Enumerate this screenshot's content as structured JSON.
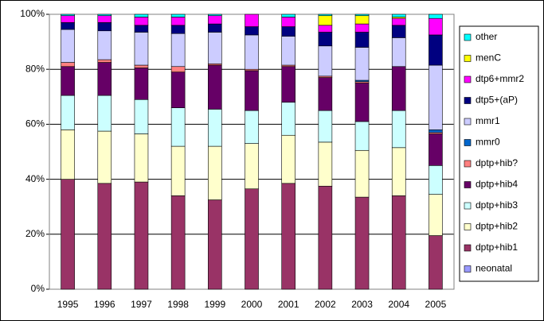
{
  "chart_data": {
    "type": "stacked-bar",
    "categories": [
      "1995",
      "1996",
      "1997",
      "1998",
      "1999",
      "2000",
      "2001",
      "2002",
      "2003",
      "2004",
      "2005"
    ],
    "ylim": [
      0,
      100
    ],
    "yticks": [
      {
        "value": 0,
        "label": "0%"
      },
      {
        "value": 20,
        "label": "20%"
      },
      {
        "value": 40,
        "label": "40%"
      },
      {
        "value": 60,
        "label": "60%"
      },
      {
        "value": 80,
        "label": "80%"
      },
      {
        "value": 100,
        "label": "100%"
      }
    ],
    "grid": true,
    "legend": "right",
    "series": [
      {
        "name": "neonatal",
        "color": "#9999ff",
        "values": [
          0,
          0,
          0,
          0,
          0,
          0,
          0,
          0,
          0,
          0,
          0
        ]
      },
      {
        "name": "dptp+hib1",
        "color": "#993366",
        "values": [
          40,
          38.5,
          39,
          34,
          32.5,
          36.5,
          38.5,
          37.5,
          33.5,
          34,
          19.5
        ]
      },
      {
        "name": "dptp+hib2",
        "color": "#ffffcc",
        "values": [
          18,
          19,
          17.5,
          18,
          19.5,
          16.5,
          17.5,
          16,
          17,
          17.5,
          15
        ]
      },
      {
        "name": "dptp+hib3",
        "color": "#ccffff",
        "values": [
          12.5,
          13,
          12.5,
          14,
          13.5,
          12,
          12,
          11.5,
          10.5,
          13.5,
          10.5
        ]
      },
      {
        "name": "dptp+hib4",
        "color": "#660066",
        "values": [
          10.5,
          12,
          11.5,
          13,
          16,
          14.5,
          13,
          12,
          14,
          16,
          11.5
        ]
      },
      {
        "name": "dptp+hib?",
        "color": "#ff8080",
        "values": [
          1.5,
          1,
          1,
          2,
          0.5,
          0.5,
          0.5,
          0.5,
          0.5,
          0,
          0.5
        ]
      },
      {
        "name": "mmr0",
        "color": "#0066cc",
        "values": [
          0,
          0,
          0,
          0,
          0,
          0,
          0,
          0,
          0.5,
          0,
          1
        ]
      },
      {
        "name": "mmr1",
        "color": "#ccccff",
        "values": [
          12,
          10.5,
          12,
          12,
          11.5,
          12.5,
          10.5,
          11,
          12,
          10.5,
          23.5
        ]
      },
      {
        "name": "dtp5+(aP)",
        "color": "#000080",
        "values": [
          2.5,
          3,
          2.5,
          3,
          3,
          3,
          3.5,
          5,
          5.5,
          4.5,
          11
        ]
      },
      {
        "name": "dtp6+mmr2",
        "color": "#ff00ff",
        "values": [
          2.5,
          2.5,
          3,
          3,
          3,
          4.5,
          3.5,
          2.5,
          3,
          2.5,
          6
        ]
      },
      {
        "name": "menC",
        "color": "#ffff00",
        "values": [
          0,
          0,
          0,
          0,
          0,
          0,
          0,
          3.5,
          3,
          0.5,
          0
        ]
      },
      {
        "name": "other",
        "color": "#00ffff",
        "values": [
          0.5,
          0.5,
          1,
          1,
          0.5,
          0,
          1,
          0.5,
          0.5,
          1,
          1.5
        ]
      }
    ]
  }
}
